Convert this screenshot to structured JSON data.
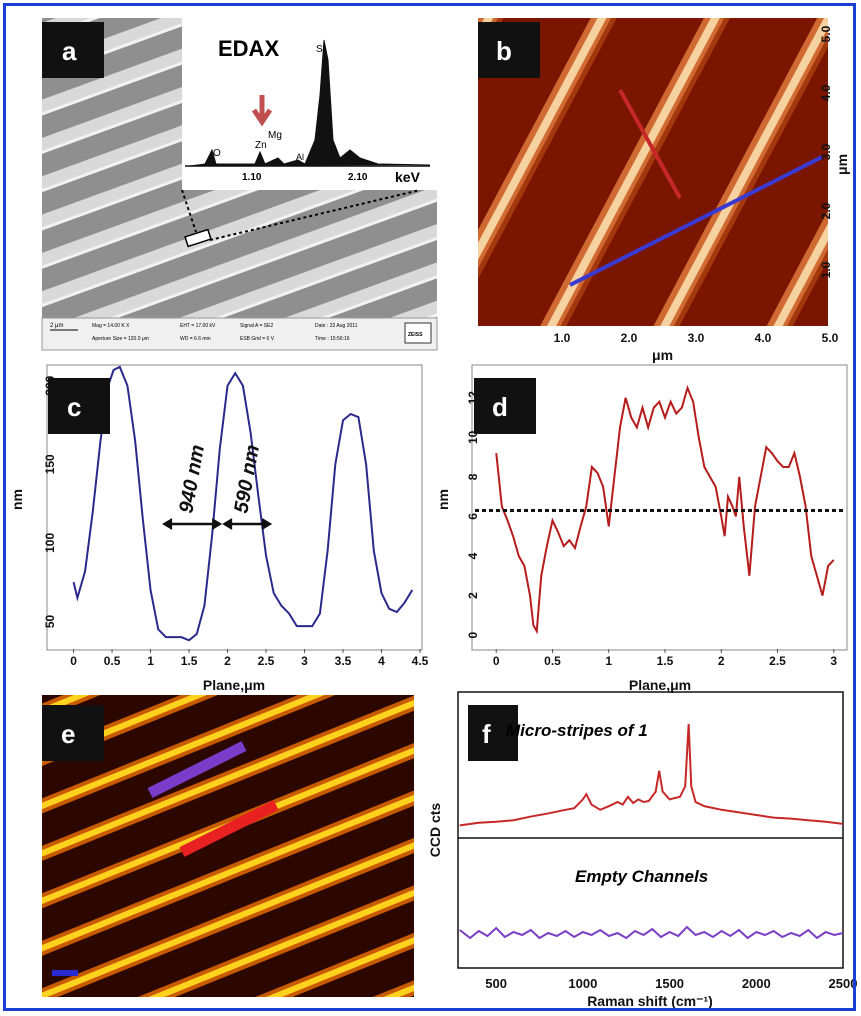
{
  "panels": {
    "a": {
      "label": "a",
      "inset_title": "EDAX",
      "inset_xlabel": "keV",
      "inset_ticks": [
        "1.10",
        "2.10"
      ],
      "peaks": [
        "O",
        "Zn",
        "Mg",
        "Al",
        "Si"
      ],
      "footer": {
        "scale": "2 μm",
        "mag": "Mag = 14.00 K X",
        "aperture": "Aperture Size = 120.0 μm",
        "eht": "EHT = 17.00 kV",
        "wd": "WD = 6.6 mm",
        "signal": "Signal A = SE2",
        "esb": "ESB Grid = 0 V",
        "date": "Date : 22 Aug 2011",
        "time": "Time : 15:56:16",
        "logo": "ZEISS"
      }
    },
    "b": {
      "label": "b",
      "xlabel": "μm",
      "ylabel": "μm",
      "xticks": [
        "1.0",
        "2.0",
        "3.0",
        "4.0",
        "5.0"
      ],
      "yticks": [
        "1.0",
        "2.0",
        "3.0",
        "4.0",
        "5.0"
      ]
    },
    "c": {
      "label": "c",
      "xlabel": "Plane,μm",
      "ylabel": "nm",
      "annot1": "940 nm",
      "annot2": "590 nm"
    },
    "d": {
      "label": "d",
      "xlabel": "Plane,μm",
      "ylabel": "nm"
    },
    "e": {
      "label": "e"
    },
    "f": {
      "label": "f",
      "xlabel": "Raman shift (cm⁻¹)",
      "ylabel": "CCD cts",
      "title_top": "Micro-stripes of 1",
      "title_bottom": "Empty Channels"
    }
  },
  "chart_data": [
    {
      "type": "line",
      "panel": "c",
      "xlabel": "Plane,μm",
      "ylabel": "nm",
      "xlim": [
        -0.15,
        4.5
      ],
      "ylim": [
        35,
        210
      ],
      "xticks": [
        0,
        0.5,
        1,
        1.5,
        2,
        2.5,
        3,
        3.5,
        4,
        4.5
      ],
      "yticks": [
        50,
        100,
        150,
        200
      ],
      "x": [
        0,
        0.05,
        0.15,
        0.25,
        0.35,
        0.45,
        0.52,
        0.6,
        0.7,
        0.8,
        0.9,
        1.0,
        1.1,
        1.2,
        1.3,
        1.4,
        1.5,
        1.6,
        1.7,
        1.8,
        1.9,
        2.0,
        2.1,
        2.2,
        2.3,
        2.4,
        2.5,
        2.6,
        2.7,
        2.8,
        2.9,
        3.0,
        3.1,
        3.2,
        3.3,
        3.4,
        3.5,
        3.6,
        3.7,
        3.8,
        3.9,
        4.0,
        4.1,
        4.2,
        4.3,
        4.4
      ],
      "values": [
        75,
        65,
        82,
        120,
        165,
        200,
        210,
        212,
        200,
        165,
        115,
        70,
        45,
        40,
        40,
        40,
        38,
        42,
        60,
        105,
        160,
        200,
        208,
        200,
        170,
        130,
        92,
        68,
        60,
        55,
        47,
        47,
        47,
        55,
        95,
        150,
        178,
        182,
        180,
        150,
        95,
        68,
        58,
        56,
        62,
        70
      ],
      "annotations": [
        {
          "text": "940 nm",
          "from": 1.15,
          "to": 1.93,
          "y": 112
        },
        {
          "text": "590 nm",
          "from": 1.93,
          "to": 2.58,
          "y": 112
        }
      ]
    },
    {
      "type": "line",
      "panel": "d",
      "xlabel": "Plane,μm",
      "ylabel": "nm",
      "xlim": [
        -0.1,
        3.1
      ],
      "ylim": [
        -0.5,
        13
      ],
      "xticks": [
        0,
        0.5,
        1,
        1.5,
        2,
        2.5,
        3
      ],
      "yticks": [
        0,
        2,
        4,
        6,
        8,
        10,
        12
      ],
      "reference_line": 6.3,
      "x": [
        0,
        0.05,
        0.1,
        0.15,
        0.2,
        0.25,
        0.3,
        0.33,
        0.36,
        0.4,
        0.45,
        0.5,
        0.55,
        0.6,
        0.65,
        0.7,
        0.75,
        0.8,
        0.85,
        0.9,
        0.95,
        1.0,
        1.05,
        1.1,
        1.15,
        1.2,
        1.25,
        1.3,
        1.35,
        1.4,
        1.45,
        1.5,
        1.55,
        1.6,
        1.65,
        1.7,
        1.75,
        1.8,
        1.85,
        1.9,
        1.95,
        2.0,
        2.03,
        2.06,
        2.1,
        2.13,
        2.16,
        2.2,
        2.25,
        2.3,
        2.35,
        2.4,
        2.45,
        2.5,
        2.55,
        2.6,
        2.65,
        2.7,
        2.75,
        2.8,
        2.85,
        2.9,
        2.95,
        3.0
      ],
      "values": [
        9.2,
        6.5,
        5.8,
        5.0,
        4.0,
        3.5,
        2.0,
        0.5,
        0.2,
        3.0,
        4.5,
        5.8,
        5.2,
        4.5,
        4.8,
        4.4,
        5.5,
        6.5,
        8.5,
        8.2,
        7.5,
        5.5,
        8.0,
        10.5,
        12.0,
        11.0,
        10.5,
        11.5,
        10.5,
        11.5,
        11.8,
        11.0,
        11.8,
        11.2,
        11.5,
        12.5,
        11.8,
        10.0,
        8.5,
        8.0,
        7.5,
        6.0,
        5.0,
        7.0,
        6.5,
        6.0,
        8.0,
        5.5,
        3.0,
        6.5,
        8.0,
        9.5,
        9.2,
        8.8,
        8.5,
        8.5,
        9.2,
        8.0,
        6.5,
        4.0,
        3.0,
        2.0,
        3.5,
        3.8
      ]
    },
    {
      "type": "line",
      "panel": "f",
      "xlabel": "Raman shift (cm⁻¹)",
      "ylabel": "CCD cts",
      "xlim": [
        280,
        2500
      ],
      "xticks": [
        500,
        1000,
        1500,
        2000,
        2500
      ],
      "series": [
        {
          "name": "Micro-stripes of 1",
          "x": [
            290,
            400,
            500,
            600,
            700,
            800,
            900,
            950,
            1000,
            1020,
            1050,
            1100,
            1150,
            1200,
            1230,
            1260,
            1290,
            1320,
            1350,
            1380,
            1420,
            1440,
            1460,
            1500,
            1560,
            1590,
            1610,
            1625,
            1650,
            1700,
            1800,
            1900,
            2000,
            2100,
            2200,
            2300,
            2400,
            2500
          ],
          "values": [
            0.05,
            0.1,
            0.12,
            0.15,
            0.22,
            0.28,
            0.35,
            0.38,
            0.55,
            0.65,
            0.45,
            0.35,
            0.42,
            0.5,
            0.45,
            0.6,
            0.48,
            0.55,
            0.5,
            0.52,
            0.7,
            1.1,
            0.7,
            0.55,
            0.6,
            0.8,
            2.0,
            0.8,
            0.5,
            0.42,
            0.35,
            0.3,
            0.25,
            0.2,
            0.18,
            0.15,
            0.12,
            0.08
          ]
        },
        {
          "name": "Empty Channels",
          "x": [
            290,
            350,
            400,
            450,
            500,
            550,
            600,
            650,
            700,
            750,
            800,
            850,
            900,
            950,
            1000,
            1050,
            1100,
            1150,
            1200,
            1250,
            1300,
            1350,
            1400,
            1450,
            1500,
            1550,
            1600,
            1650,
            1700,
            1750,
            1800,
            1850,
            1900,
            1950,
            2000,
            2050,
            2100,
            2150,
            2200,
            2250,
            2300,
            2350,
            2400,
            2450,
            2500
          ],
          "values": [
            0.6,
            0.2,
            0.55,
            0.3,
            0.7,
            0.25,
            0.5,
            0.35,
            0.6,
            0.2,
            0.45,
            0.3,
            0.55,
            0.25,
            0.5,
            0.35,
            0.6,
            0.3,
            0.45,
            0.2,
            0.55,
            0.35,
            0.65,
            0.25,
            0.5,
            0.3,
            0.75,
            0.35,
            0.5,
            0.25,
            0.55,
            0.3,
            0.6,
            0.2,
            0.5,
            0.35,
            0.55,
            0.25,
            0.45,
            0.3,
            0.6,
            0.2,
            0.5,
            0.35,
            0.45
          ]
        }
      ]
    }
  ]
}
